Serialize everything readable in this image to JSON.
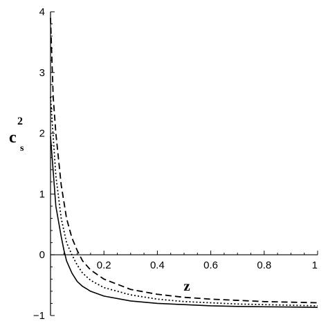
{
  "chart_data": {
    "type": "line",
    "xlabel": "z",
    "ylabel_main": "c",
    "ylabel_sub": "s",
    "ylabel_sup": "2",
    "xlim": [
      0,
      1
    ],
    "ylim": [
      -1,
      4
    ],
    "x_ticks": [
      {
        "value": 0.2,
        "label": "0.2"
      },
      {
        "value": 0.4,
        "label": "0.4"
      },
      {
        "value": 0.6,
        "label": "0.6"
      },
      {
        "value": 0.8,
        "label": "0.8"
      },
      {
        "value": 1.0,
        "label": "1"
      }
    ],
    "y_ticks": [
      {
        "value": -1,
        "label": "−1"
      },
      {
        "value": 0,
        "label": "0"
      },
      {
        "value": 1,
        "label": "1"
      },
      {
        "value": 2,
        "label": "2"
      },
      {
        "value": 3,
        "label": "3"
      },
      {
        "value": 4,
        "label": "4"
      }
    ],
    "grid": false,
    "series": [
      {
        "style": "solid",
        "color": "#000000",
        "x": [
          0.0,
          0.02,
          0.04,
          0.05,
          0.06,
          0.08,
          0.1,
          0.12,
          0.15,
          0.2,
          0.3,
          0.4,
          0.5,
          0.6,
          0.7,
          0.8,
          0.9,
          1.0
        ],
        "y": [
          1.95,
          0.8,
          0.3,
          0.08,
          -0.1,
          -0.3,
          -0.44,
          -0.52,
          -0.6,
          -0.68,
          -0.76,
          -0.8,
          -0.82,
          -0.84,
          -0.85,
          -0.855,
          -0.86,
          -0.865
        ]
      },
      {
        "style": "dotted",
        "color": "#000000",
        "x": [
          0.0,
          0.02,
          0.04,
          0.06,
          0.08,
          0.1,
          0.12,
          0.15,
          0.2,
          0.3,
          0.4,
          0.5,
          0.6,
          0.7,
          0.8,
          0.9,
          1.0
        ],
        "y": [
          2.6,
          1.3,
          0.6,
          0.2,
          0.0,
          -0.17,
          -0.3,
          -0.42,
          -0.54,
          -0.66,
          -0.73,
          -0.77,
          -0.79,
          -0.81,
          -0.82,
          -0.83,
          -0.84
        ]
      },
      {
        "style": "dashed",
        "color": "#000000",
        "x": [
          0.0,
          0.01,
          0.02,
          0.04,
          0.06,
          0.08,
          0.1,
          0.12,
          0.15,
          0.2,
          0.3,
          0.4,
          0.5,
          0.6,
          0.7,
          0.8,
          0.9,
          1.0
        ],
        "y": [
          3.9,
          2.6,
          2.0,
          1.15,
          0.6,
          0.28,
          0.07,
          -0.1,
          -0.25,
          -0.4,
          -0.57,
          -0.65,
          -0.7,
          -0.73,
          -0.75,
          -0.77,
          -0.78,
          -0.79
        ]
      }
    ]
  }
}
